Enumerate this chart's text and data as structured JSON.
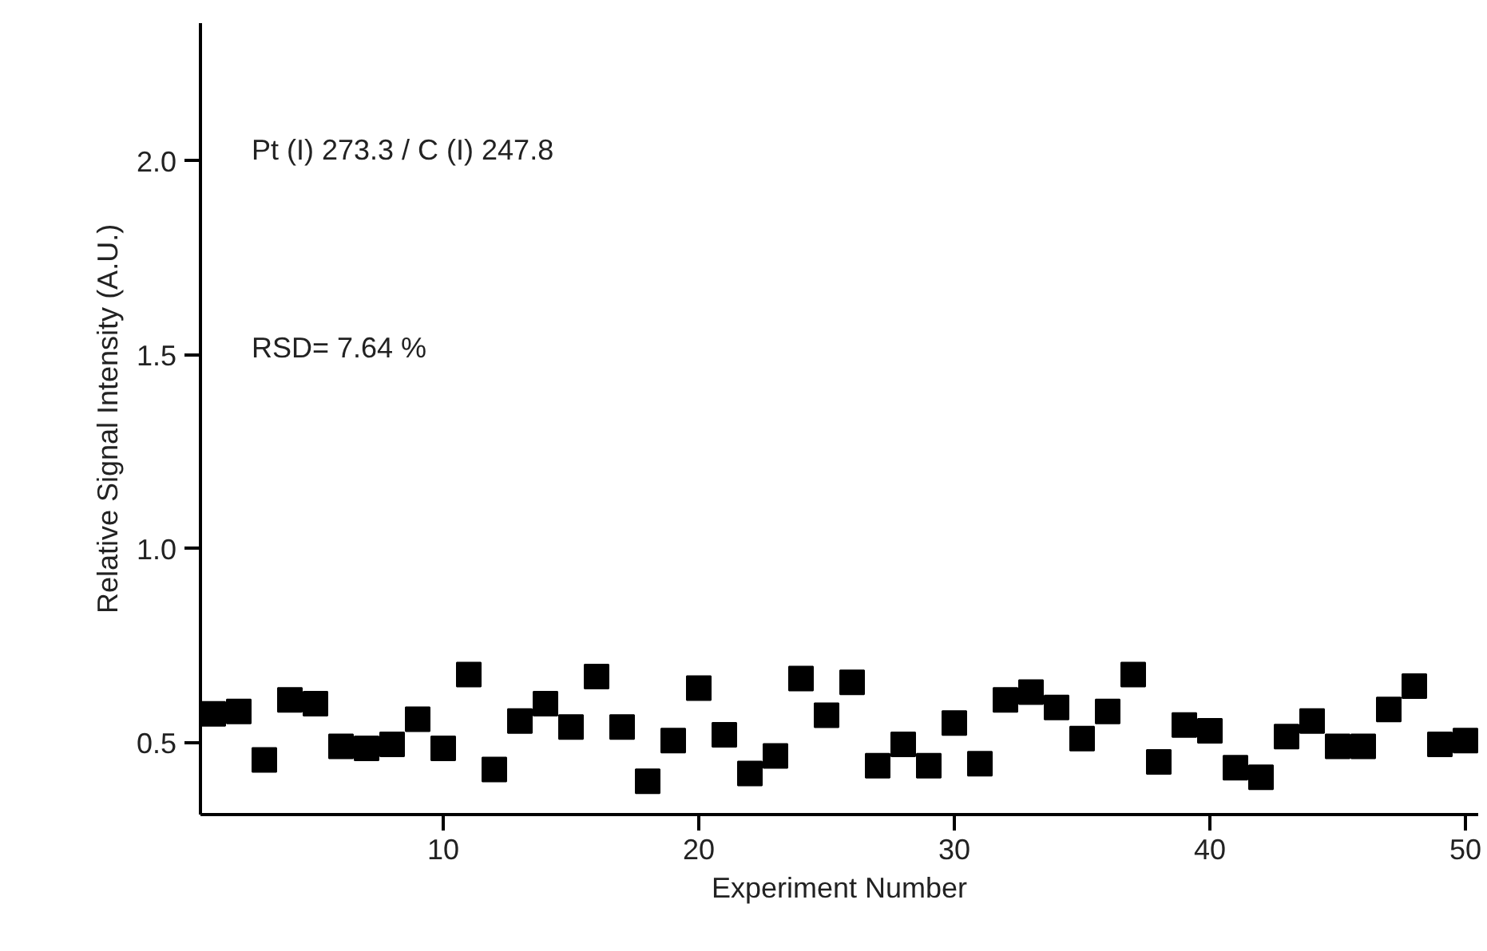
{
  "chart_data": {
    "type": "scatter",
    "xlabel": "Experiment Number",
    "ylabel": "Relative Signal Intensity (A.U.)",
    "annotations": [
      "Pt (I) 273.3 / C (I) 247.8",
      "RSD= 7.64 %"
    ],
    "x": [
      1,
      2,
      3,
      4,
      5,
      6,
      7,
      8,
      9,
      10,
      11,
      12,
      13,
      14,
      15,
      16,
      17,
      18,
      19,
      20,
      21,
      22,
      23,
      24,
      25,
      26,
      27,
      28,
      29,
      30,
      31,
      32,
      33,
      34,
      35,
      36,
      37,
      38,
      39,
      40,
      41,
      42,
      43,
      44,
      45,
      46,
      47,
      48,
      49,
      50
    ],
    "series": [
      {
        "color": "#000000",
        "values": [
          0.574,
          0.58,
          0.455,
          0.61,
          0.6,
          0.49,
          0.485,
          0.495,
          0.56,
          0.485,
          0.675,
          0.43,
          0.555,
          0.6,
          0.54,
          0.67,
          0.54,
          0.4,
          0.505,
          0.64,
          0.52,
          0.42,
          0.465,
          0.665,
          0.57,
          0.655,
          0.44,
          0.495,
          0.44,
          0.55,
          0.445,
          0.61,
          0.63,
          0.59,
          0.51,
          0.58,
          0.675,
          0.45,
          0.545,
          0.53,
          0.435,
          0.41,
          0.515,
          0.555,
          0.49,
          0.49,
          0.585,
          0.645,
          0.495,
          0.505
        ]
      }
    ],
    "xlim": [
      0.5,
      50.5
    ],
    "ylim": [
      0.314,
      2.355
    ],
    "xticks": [
      10,
      20,
      30,
      40,
      50
    ],
    "yticks": [
      {
        "value": 0.5,
        "label": "0.5"
      },
      {
        "value": 1.0,
        "label": "1.0"
      },
      {
        "value": 1.5,
        "label": "1.5"
      },
      {
        "value": 2.0,
        "label": "2.0"
      }
    ],
    "marker": "square",
    "grid": false
  }
}
